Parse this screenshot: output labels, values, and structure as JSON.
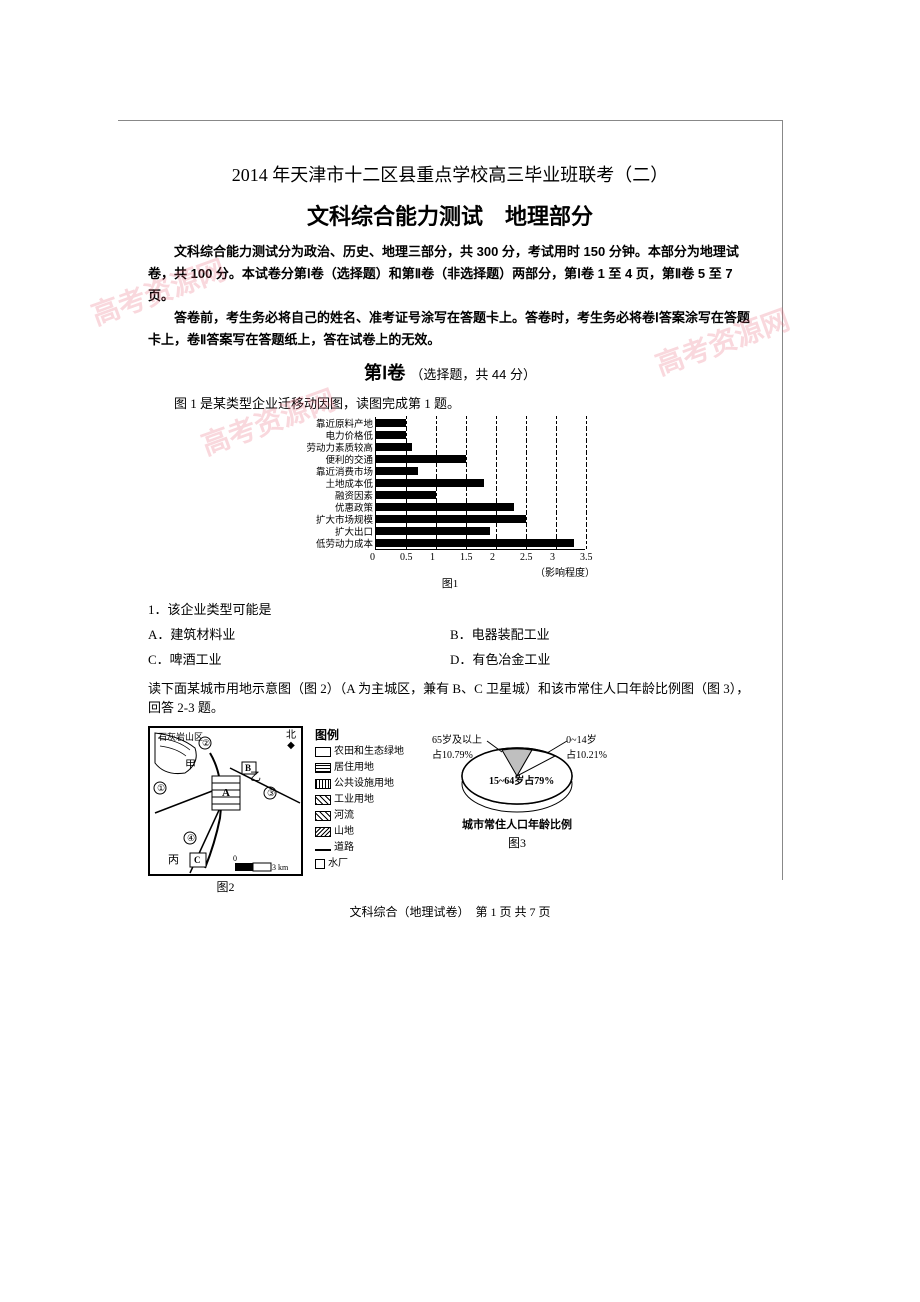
{
  "header": {
    "exam_title": "2014 年天津市十二区县重点学校高三毕业班联考（二）",
    "subject_title": "文科综合能力测试　地理部分",
    "intro_p1": "文科综合能力测试分为政治、历史、地理三部分，共 300 分，考试用时 150 分钟。本部分为地理试卷，共 100 分。本试卷分第Ⅰ卷（选择题）和第Ⅱ卷（非选择题）两部分，第Ⅰ卷 1 至 4 页，第Ⅱ卷 5 至 7 页。",
    "intro_p2": "答卷前，考生务必将自己的姓名、准考证号涂写在答题卡上。答卷时，考生务必将卷Ⅰ答案涂写在答题卡上，卷Ⅱ答案写在答题纸上，答在试卷上的无效。"
  },
  "section": {
    "title": "第Ⅰ卷",
    "sub": "（选择题，共 44 分）"
  },
  "q1": {
    "prompt": "图 1 是某类型企业迁移动因图，读图完成第 1 题。",
    "chart": {
      "type": "bar-horizontal",
      "xlim": [
        0,
        3.5
      ],
      "xticks": [
        0,
        0.5,
        1,
        1.5,
        2,
        2.5,
        3,
        3.5
      ],
      "xlabel": "（影响程度）",
      "caption": "图1",
      "bar_color": "#000000",
      "grid_color": "#000000",
      "categories": [
        "靠近原料产地",
        "电力价格低",
        "劳动力素质较高",
        "便利的交通",
        "靠近消费市场",
        "土地成本低",
        "融资因素",
        "优惠政策",
        "扩大市场规模",
        "扩大出口",
        "低劳动力成本"
      ],
      "values": [
        0.5,
        0.5,
        0.6,
        1.5,
        0.7,
        1.8,
        1.0,
        2.3,
        2.5,
        1.9,
        3.3
      ]
    },
    "question": "1．该企业类型可能是",
    "options": {
      "A": "A．建筑材料业",
      "B": "B．电器装配工业",
      "C": "C．啤酒工业",
      "D": "D．有色冶金工业"
    }
  },
  "q2": {
    "prompt": "读下面某城市用地示意图（图 2）（A 为主城区，兼有 B、C 卫星城）和该市常住人口年龄比例图（图 3），回答 2-3 题。",
    "map": {
      "caption": "图2",
      "mountain_label": "石灰岩山区",
      "compass_n": "北",
      "scale": "0　3 km",
      "region_labels": [
        "甲",
        "乙",
        "丙"
      ],
      "city_labels": [
        "A",
        "B",
        "C"
      ],
      "circled": [
        "①",
        "②",
        "③",
        "④"
      ]
    },
    "legend": {
      "title": "图例",
      "items": [
        {
          "name": "农田和生态绿地",
          "fill": "#ffffff"
        },
        {
          "name": "居住用地",
          "fill": "stripes-h"
        },
        {
          "name": "公共设施用地",
          "fill": "stripes-v"
        },
        {
          "name": "工业用地",
          "fill": "crosshatch"
        },
        {
          "name": "河流",
          "fill": "diag"
        },
        {
          "name": "山地",
          "fill": "hatch"
        },
        {
          "name": "道路",
          "fill": "line"
        },
        {
          "name": "水厂",
          "fill": "square"
        }
      ]
    },
    "pie": {
      "type": "pie",
      "caption": "图3",
      "title_below": "城市常住人口年龄比例",
      "slices": [
        {
          "label": "65岁及以上 占10.79%",
          "value": 10.79,
          "color": "#bfbfbf"
        },
        {
          "label": "0~14岁 占10.21%",
          "value": 10.21,
          "color": "#ffffff"
        },
        {
          "label": "15~64岁占79%",
          "value": 79.0,
          "color": "#ffffff"
        }
      ],
      "slice_labels": {
        "elderly": "65岁及以上",
        "elderly_pct": "占10.79%",
        "child": "0~14岁",
        "child_pct": "占10.21%",
        "working": "15~64岁占79%"
      }
    }
  },
  "footer": "文科综合（地理试卷）　第 1 页 共 7 页",
  "watermarks": [
    "高考资源网",
    "高考资源网",
    "高考资源网"
  ]
}
